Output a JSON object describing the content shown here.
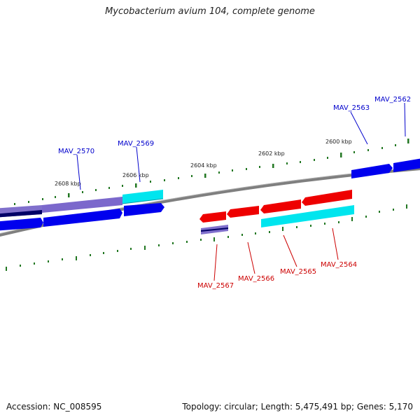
{
  "title": "Mycobacterium avium 104, complete genome",
  "footer": {
    "accession": "Accession: NC_008595",
    "summary": "Topology: circular; Length: 5,475,491 bp; Genes: 5,170"
  },
  "ticks": [
    {
      "label": "2600 kbp"
    },
    {
      "label": "2602 kbp"
    },
    {
      "label": "2604 kbp"
    },
    {
      "label": "2606 kbp"
    },
    {
      "label": "2608 kbp"
    }
  ],
  "genes_forward": [
    {
      "name": "MAV_2562",
      "color": "#0000cc"
    },
    {
      "name": "MAV_2563",
      "color": "#0000cc"
    },
    {
      "name": "MAV_2569",
      "color": "#0000cc"
    },
    {
      "name": "MAV_2570",
      "color": "#0000cc"
    }
  ],
  "genes_reverse": [
    {
      "name": "MAV_2564",
      "color": "#cc0000"
    },
    {
      "name": "MAV_2565",
      "color": "#cc0000"
    },
    {
      "name": "MAV_2566",
      "color": "#cc0000"
    },
    {
      "name": "MAV_2567",
      "color": "#cc0000"
    }
  ],
  "colors": {
    "backbone": "#7f7f7f",
    "tick": "#227722",
    "forward_cds": "#0000ee",
    "reverse_cds": "#ee0000",
    "cyan_feature": "#00e5ee",
    "purple_feature": "#7b68cc",
    "navy_feature": "#000066"
  }
}
